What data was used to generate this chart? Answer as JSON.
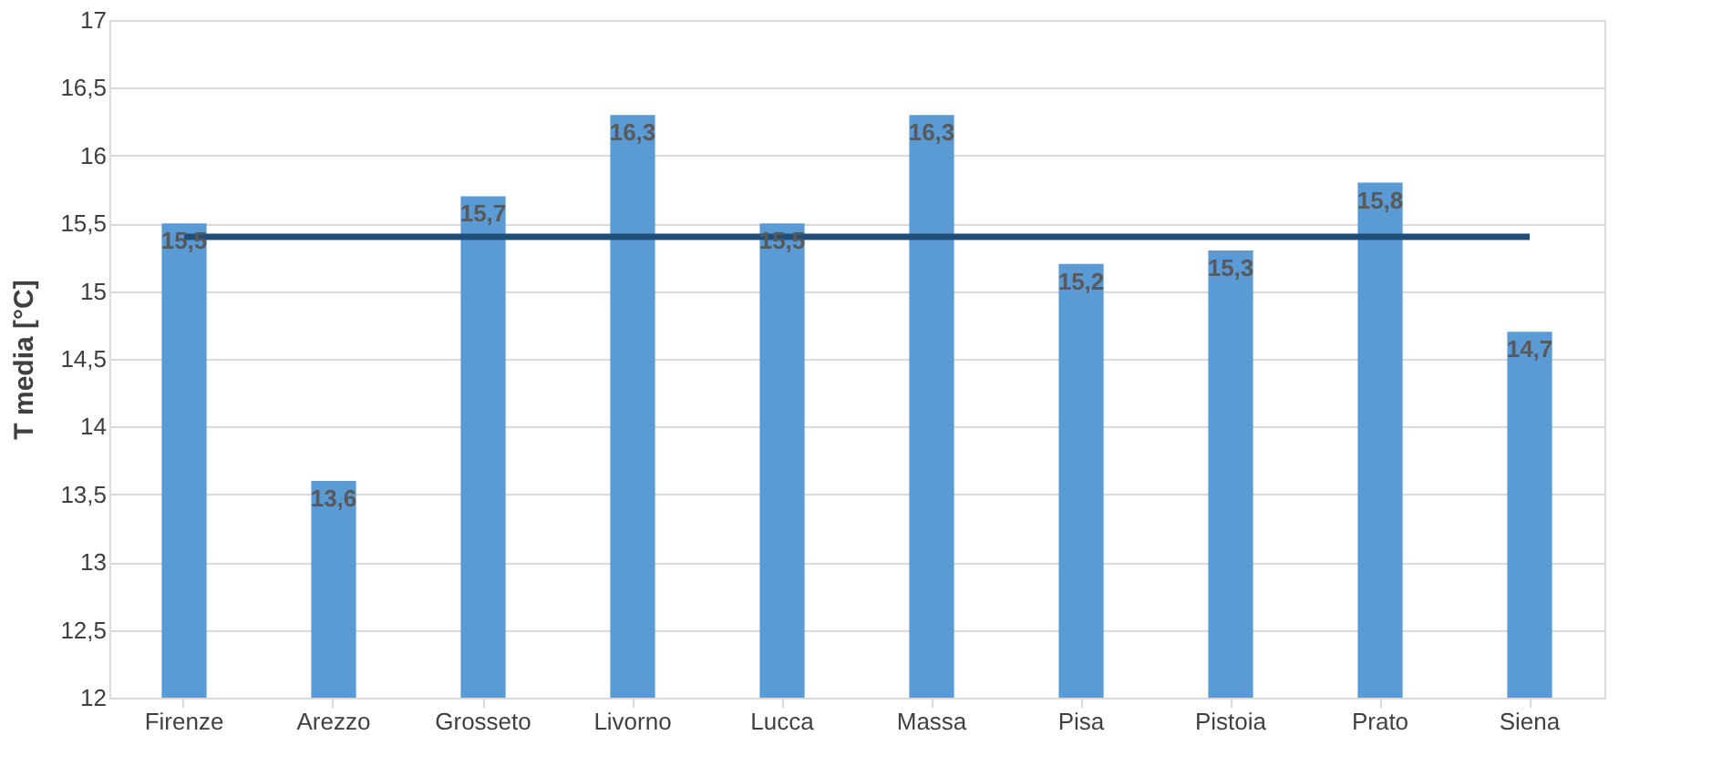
{
  "chart_data": {
    "type": "bar",
    "ylabel": "T media [°C]",
    "categories": [
      "Firenze",
      "Arezzo",
      "Grosseto",
      "Livorno",
      "Lucca",
      "Massa",
      "Pisa",
      "Pistoia",
      "Prato",
      "Siena"
    ],
    "series": [
      {
        "type": "bar",
        "color": "#5b9bd5",
        "values": [
          15.5,
          13.6,
          15.7,
          16.3,
          15.5,
          16.3,
          15.2,
          15.3,
          15.8,
          14.7
        ],
        "value_labels": [
          "15,5",
          "13,6",
          "15,7",
          "16,3",
          "15,5",
          "16,3",
          "15,2",
          "15,3",
          "15,8",
          "14,7"
        ]
      },
      {
        "type": "line",
        "color": "#1f4e79",
        "values": [
          15.4,
          15.4,
          15.4,
          15.4,
          15.4,
          15.4,
          15.4,
          15.4,
          15.4,
          15.4
        ]
      }
    ],
    "ylim": [
      12,
      17
    ],
    "yticks": [
      12,
      {
        "value": 12.5,
        "label": "12,5"
      },
      13,
      {
        "value": 13.5,
        "label": "13,5"
      },
      14,
      {
        "value": 14.5,
        "label": "14,5"
      },
      15,
      {
        "value": 15.5,
        "label": "15,5"
      },
      16,
      {
        "value": 16.5,
        "label": "16,5"
      },
      17
    ],
    "grid": "y",
    "legend": false
  }
}
